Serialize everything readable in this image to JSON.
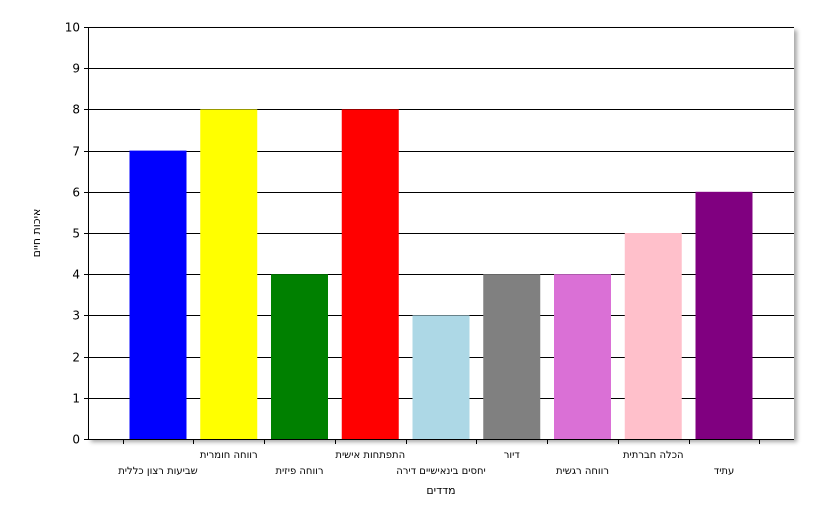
{
  "chart_data": {
    "type": "bar",
    "title": "",
    "xlabel": "מדדים",
    "ylabel": "איכות חיים",
    "ylim": [
      0,
      10
    ],
    "yticks": [
      0,
      1,
      2,
      3,
      4,
      5,
      6,
      7,
      8,
      9,
      10
    ],
    "grid": true,
    "legend": "none",
    "categories": [
      "שביעות רצון כללית",
      "רווחה חומרית",
      "רווחה פיזית",
      "התפתחות אישית",
      "יחסים בינאישיים דירה",
      "דיור",
      "רווחה רגשית",
      "הכלה חברתית",
      "עתיד"
    ],
    "values": [
      7,
      8,
      4,
      8,
      3,
      4,
      4,
      5,
      6
    ],
    "colors": [
      "#0000ff",
      "#ffff00",
      "#008000",
      "#ff0000",
      "#add8e6",
      "#808080",
      "#da70d6",
      "#ffc0cb",
      "#800080"
    ]
  }
}
